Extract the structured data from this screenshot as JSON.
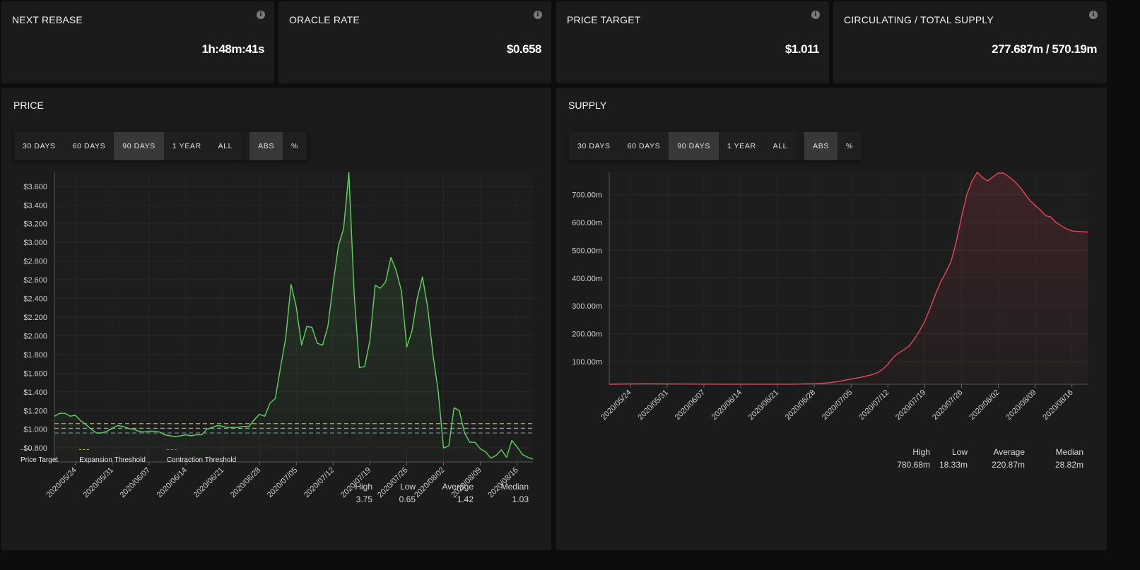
{
  "stat_cards": [
    {
      "title": "NEXT REBASE",
      "value": "1h:48m:41s"
    },
    {
      "title": "ORACLE RATE",
      "value": "$0.658"
    },
    {
      "title": "PRICE TARGET",
      "value": "$1.011"
    },
    {
      "title": "CIRCULATING / TOTAL SUPPLY",
      "value": "277.687m / 570.19m"
    }
  ],
  "info_glyph": "i",
  "price_panel": {
    "title": "PRICE",
    "range_buttons": [
      "30 DAYS",
      "60 DAYS",
      "90 DAYS",
      "1 YEAR",
      "ALL"
    ],
    "active_range": "90 DAYS",
    "mode_buttons": [
      "ABS",
      "%"
    ],
    "active_mode": "ABS",
    "legend": [
      {
        "label": "Price Target",
        "color": "#9a9a9a"
      },
      {
        "label": "Expansion Threshold",
        "color": "#b5b53c"
      },
      {
        "label": "Contraction Threshold",
        "color": "#6f8590"
      }
    ],
    "stats": [
      {
        "label": "High",
        "value": "3.75"
      },
      {
        "label": "Low",
        "value": "0.65"
      },
      {
        "label": "Average",
        "value": "1.42"
      },
      {
        "label": "Median",
        "value": "1.03"
      }
    ]
  },
  "supply_panel": {
    "title": "SUPPLY",
    "range_buttons": [
      "30 DAYS",
      "60 DAYS",
      "90 DAYS",
      "1 YEAR",
      "ALL"
    ],
    "active_range": "90 DAYS",
    "mode_buttons": [
      "ABS",
      "%"
    ],
    "active_mode": "ABS",
    "stats": [
      {
        "label": "High",
        "value": "780.68m"
      },
      {
        "label": "Low",
        "value": "18.33m"
      },
      {
        "label": "Average",
        "value": "220.87m"
      },
      {
        "label": "Median",
        "value": "28.82m"
      }
    ]
  },
  "chart_data": [
    {
      "type": "area",
      "x_labels": [
        "2020/05/24",
        "2020/05/31",
        "2020/06/07",
        "2020/06/14",
        "2020/06/21",
        "2020/06/28",
        "2020/07/05",
        "2020/07/12",
        "2020/07/19",
        "2020/07/26",
        "2020/08/02",
        "2020/08/09",
        "2020/08/16"
      ],
      "x_range": [
        "2020/05/20",
        "2020/08/19"
      ],
      "y_ticks": [
        "$0.800",
        "$1.000",
        "$1.200",
        "$1.400",
        "$1.600",
        "$1.800",
        "$2.000",
        "$2.200",
        "$2.400",
        "$2.600",
        "$2.800",
        "$3.000",
        "$3.200",
        "$3.400",
        "$3.600"
      ],
      "ylim": [
        0.65,
        3.75
      ],
      "color": "#5fd35f",
      "thresholds": [
        {
          "name": "Expansion Threshold",
          "value": 1.06,
          "color": "#b5b53c"
        },
        {
          "name": "Price Target",
          "value": 1.01,
          "color": "#9a9a9a"
        },
        {
          "name": "Contraction Threshold",
          "value": 0.96,
          "color": "#6f8590"
        }
      ],
      "x": [
        "2020/05/20",
        "2020/05/21",
        "2020/05/22",
        "2020/05/23",
        "2020/05/24",
        "2020/05/25",
        "2020/05/26",
        "2020/05/27",
        "2020/05/28",
        "2020/05/29",
        "2020/05/30",
        "2020/05/31",
        "2020/06/01",
        "2020/06/02",
        "2020/06/03",
        "2020/06/04",
        "2020/06/05",
        "2020/06/06",
        "2020/06/07",
        "2020/06/08",
        "2020/06/09",
        "2020/06/10",
        "2020/06/11",
        "2020/06/12",
        "2020/06/13",
        "2020/06/14",
        "2020/06/15",
        "2020/06/16",
        "2020/06/17",
        "2020/06/18",
        "2020/06/19",
        "2020/06/20",
        "2020/06/21",
        "2020/06/22",
        "2020/06/23",
        "2020/06/24",
        "2020/06/25",
        "2020/06/26",
        "2020/06/27",
        "2020/06/28",
        "2020/06/29",
        "2020/06/30",
        "2020/07/01",
        "2020/07/02",
        "2020/07/03",
        "2020/07/04",
        "2020/07/05",
        "2020/07/06",
        "2020/07/07",
        "2020/07/08",
        "2020/07/09",
        "2020/07/10",
        "2020/07/11",
        "2020/07/12",
        "2020/07/13",
        "2020/07/14",
        "2020/07/15",
        "2020/07/16",
        "2020/07/17",
        "2020/07/18",
        "2020/07/19",
        "2020/07/20",
        "2020/07/21",
        "2020/07/22",
        "2020/07/23",
        "2020/07/24",
        "2020/07/25",
        "2020/07/26",
        "2020/07/27",
        "2020/07/28",
        "2020/07/29",
        "2020/07/30",
        "2020/07/31",
        "2020/08/01",
        "2020/08/02",
        "2020/08/03",
        "2020/08/04",
        "2020/08/05",
        "2020/08/06",
        "2020/08/07",
        "2020/08/08",
        "2020/08/09",
        "2020/08/10",
        "2020/08/11",
        "2020/08/12",
        "2020/08/13",
        "2020/08/14",
        "2020/08/15",
        "2020/08/16",
        "2020/08/17",
        "2020/08/18",
        "2020/08/19"
      ],
      "values": [
        1.14,
        1.17,
        1.17,
        1.14,
        1.15,
        1.09,
        1.05,
        1.0,
        0.96,
        0.96,
        0.98,
        1.01,
        1.04,
        1.03,
        1.01,
        1.0,
        0.98,
        0.97,
        0.98,
        0.98,
        0.97,
        0.94,
        0.93,
        0.92,
        0.93,
        0.94,
        0.93,
        0.94,
        0.94,
        1.0,
        1.02,
        1.04,
        1.03,
        1.02,
        1.02,
        1.02,
        1.03,
        1.03,
        1.1,
        1.16,
        1.14,
        1.28,
        1.33,
        1.66,
        1.98,
        2.55,
        2.31,
        1.9,
        2.1,
        2.09,
        1.92,
        1.9,
        2.1,
        2.55,
        2.96,
        3.15,
        3.75,
        2.45,
        1.66,
        1.67,
        1.95,
        2.54,
        2.51,
        2.58,
        2.84,
        2.7,
        2.48,
        1.88,
        2.05,
        2.4,
        2.63,
        2.3,
        1.8,
        1.4,
        0.8,
        0.82,
        1.23,
        1.2,
        0.96,
        0.86,
        0.86,
        0.79,
        0.76,
        0.69,
        0.72,
        0.78,
        0.7,
        0.88,
        0.81,
        0.73,
        0.7,
        0.68
      ]
    },
    {
      "type": "area",
      "x_labels": [
        "2020/05/24",
        "2020/05/31",
        "2020/06/07",
        "2020/06/14",
        "2020/06/21",
        "2020/06/28",
        "2020/07/05",
        "2020/07/12",
        "2020/07/19",
        "2020/07/26",
        "2020/08/02",
        "2020/08/09",
        "2020/08/16"
      ],
      "x_range": [
        "2020/05/20",
        "2020/08/19"
      ],
      "y_ticks": [
        "100.00m",
        "200.00m",
        "300.00m",
        "400.00m",
        "500.00m",
        "600.00m",
        "700.00m"
      ],
      "ylim": [
        18.33,
        780.68
      ],
      "color": "#e8465a",
      "x": [
        "2020/05/20",
        "2020/05/27",
        "2020/06/03",
        "2020/06/10",
        "2020/06/17",
        "2020/06/24",
        "2020/06/28",
        "2020/07/01",
        "2020/07/03",
        "2020/07/05",
        "2020/07/07",
        "2020/07/09",
        "2020/07/10",
        "2020/07/11",
        "2020/07/12",
        "2020/07/13",
        "2020/07/14",
        "2020/07/15",
        "2020/07/16",
        "2020/07/17",
        "2020/07/18",
        "2020/07/19",
        "2020/07/20",
        "2020/07/21",
        "2020/07/22",
        "2020/07/23",
        "2020/07/24",
        "2020/07/25",
        "2020/07/26",
        "2020/07/27",
        "2020/07/28",
        "2020/07/29",
        "2020/07/30",
        "2020/07/31",
        "2020/08/01",
        "2020/08/02",
        "2020/08/03",
        "2020/08/04",
        "2020/08/05",
        "2020/08/06",
        "2020/08/07",
        "2020/08/08",
        "2020/08/09",
        "2020/08/10",
        "2020/08/11",
        "2020/08/12",
        "2020/08/13",
        "2020/08/14",
        "2020/08/15",
        "2020/08/16",
        "2020/08/17",
        "2020/08/18",
        "2020/08/19"
      ],
      "values": [
        18.33,
        20,
        19,
        18.5,
        18.5,
        18.5,
        20,
        24,
        30,
        37,
        44,
        53,
        60,
        72,
        90,
        115,
        130,
        142,
        155,
        180,
        210,
        245,
        290,
        340,
        385,
        420,
        460,
        530,
        620,
        700,
        750,
        780.68,
        762,
        750,
        765,
        778,
        778,
        765,
        750,
        730,
        705,
        680,
        662,
        645,
        625,
        620,
        600,
        588,
        577,
        570,
        568,
        567,
        566
      ]
    }
  ]
}
